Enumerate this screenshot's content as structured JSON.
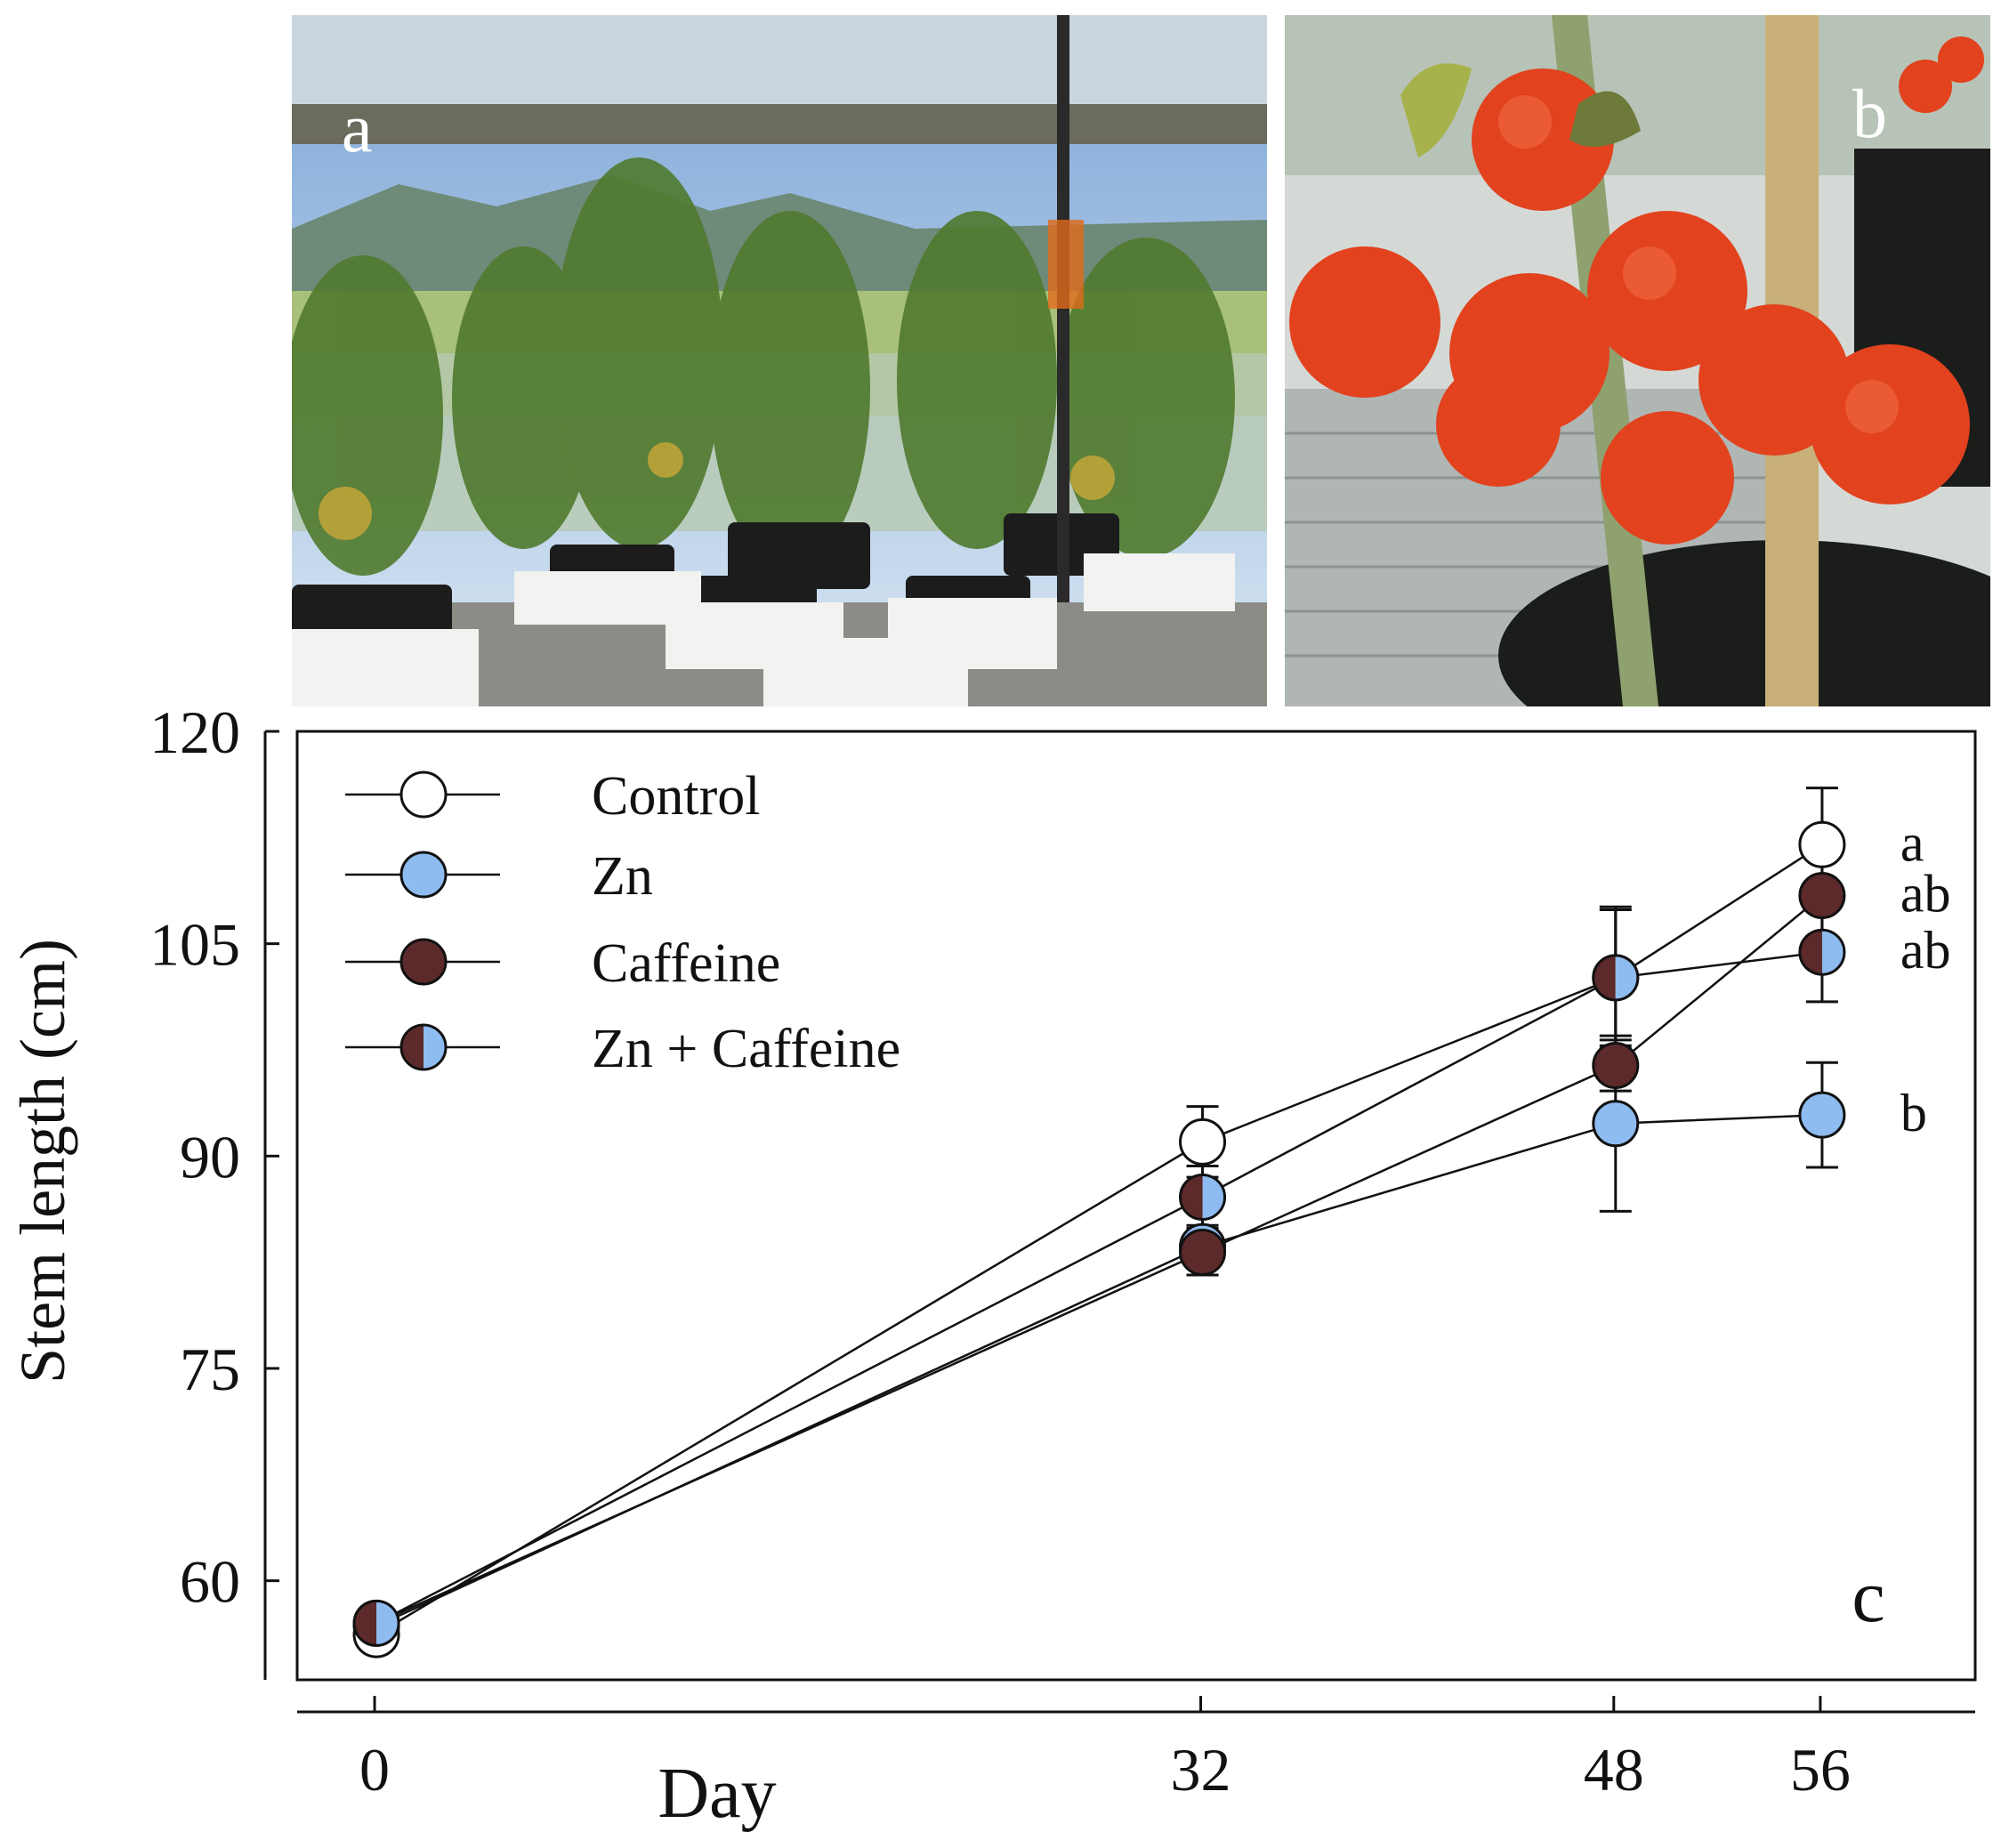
{
  "panels": {
    "photo_a_label": "a",
    "photo_b_label": "b",
    "chart_label": "c"
  },
  "icons": {
    "photo_a": "greenhouse-tomato-plants-photo",
    "photo_b": "tomato-fruit-cluster-photo"
  },
  "colors": {
    "zn": "#8fbcf0",
    "caffeine": "#5c2a2a",
    "control": "#ffffff",
    "line": "#111111"
  },
  "chart_data": {
    "type": "line",
    "xlabel": "Day",
    "ylabel": "Stem length (cm)",
    "x": [
      0,
      32,
      48,
      56
    ],
    "xticks": [
      0,
      32,
      48,
      56
    ],
    "xlim": [
      -3,
      62
    ],
    "ylim": [
      53,
      120
    ],
    "yticks": [
      60,
      75,
      90,
      105,
      120
    ],
    "legend_position": "top-left",
    "series": [
      {
        "name": "Control",
        "marker": "open",
        "values": [
          56.2,
          91.0,
          102.6,
          112.0
        ],
        "errors": [
          1.0,
          2.5,
          5.0,
          4.0
        ]
      },
      {
        "name": "Zn",
        "marker": "blue",
        "values": [
          56.8,
          83.6,
          92.3,
          92.9
        ],
        "errors": [
          1.0,
          1.5,
          6.2,
          3.7
        ]
      },
      {
        "name": "Caffeine",
        "marker": "brown",
        "values": [
          57.0,
          83.2,
          96.4,
          108.4
        ],
        "errors": [
          1.0,
          1.6,
          1.8,
          4.5
        ]
      },
      {
        "name": "Zn + Caffeine",
        "marker": "half",
        "values": [
          57.0,
          87.1,
          102.6,
          104.4
        ],
        "errors": [
          1.0,
          2.2,
          4.8,
          3.5
        ]
      }
    ],
    "annotations": [
      {
        "series": "Control",
        "text": "a"
      },
      {
        "series": "Caffeine",
        "text": "ab"
      },
      {
        "series": "Zn + Caffeine",
        "text": "ab"
      },
      {
        "series": "Zn",
        "text": "b"
      }
    ]
  }
}
